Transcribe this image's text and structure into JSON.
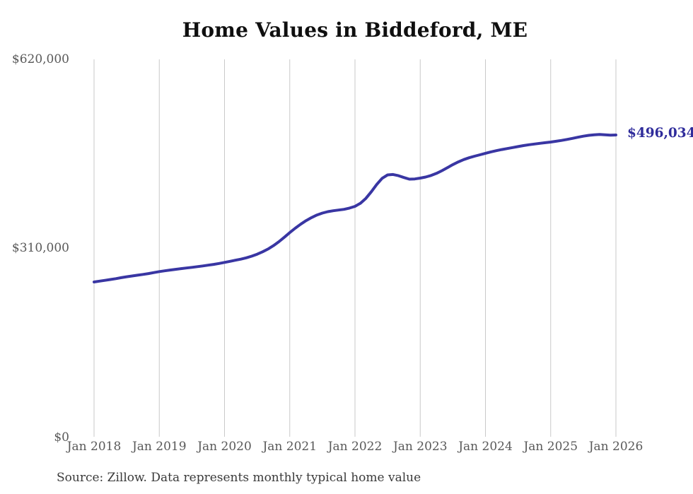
{
  "title": "Home Values in Biddeford, ME",
  "source_note": "Source: Zillow. Data represents monthly typical home value",
  "end_label": "$496,034",
  "colors": {
    "background": "#ffffff",
    "line": "#3936a3",
    "end_label": "#2f2c9b",
    "gridline": "#c9c9c9",
    "tick_text": "#595959",
    "title_text": "#0f0f0f",
    "source_text": "#3a3a3a"
  },
  "chart_data": {
    "type": "line",
    "title": "Home Values in Biddeford, ME",
    "xlabel": "",
    "ylabel": "",
    "legend": "none",
    "grid": "vertical-only",
    "ylim": [
      0,
      620000
    ],
    "y_ticks_top_to_bottom": [
      "$620,000",
      "$310,000",
      "$0"
    ],
    "y_tick_values": [
      620000,
      310000,
      0
    ],
    "x_ticks": [
      "Jan 2018",
      "Jan 2019",
      "Jan 2020",
      "Jan 2021",
      "Jan 2022",
      "Jan 2023",
      "Jan 2024",
      "Jan 2025",
      "Jan 2026"
    ],
    "x_start": "2018-01",
    "frequency": "monthly",
    "final_value": 496034,
    "final_value_label": "$496,034",
    "series": [
      {
        "name": "Monthly typical home value (USD)",
        "values": [
          255000,
          256300,
          257600,
          259000,
          260400,
          262000,
          263500,
          264800,
          266100,
          267400,
          268800,
          270400,
          272000,
          273300,
          274500,
          275700,
          276800,
          277900,
          279000,
          280100,
          281300,
          282500,
          283800,
          285300,
          287000,
          288800,
          290600,
          292400,
          294600,
          297300,
          300500,
          304400,
          309000,
          314500,
          321000,
          328300,
          336000,
          343000,
          349600,
          355500,
          360500,
          364800,
          368000,
          370300,
          371800,
          372900,
          374100,
          376200,
          379000,
          384000,
          392000,
          403000,
          415000,
          425000,
          430500,
          431200,
          429200,
          426200,
          423600,
          423900,
          425300,
          427100,
          429600,
          433100,
          437500,
          442400,
          447400,
          451900,
          455700,
          458700,
          461200,
          463600,
          466000,
          468300,
          470300,
          472100,
          473700,
          475400,
          477000,
          478600,
          480000,
          481200,
          482300,
          483400,
          484400,
          485700,
          487100,
          488700,
          490400,
          492300,
          494000,
          495400,
          496400,
          496800,
          496300,
          495800,
          496034
        ]
      }
    ]
  }
}
